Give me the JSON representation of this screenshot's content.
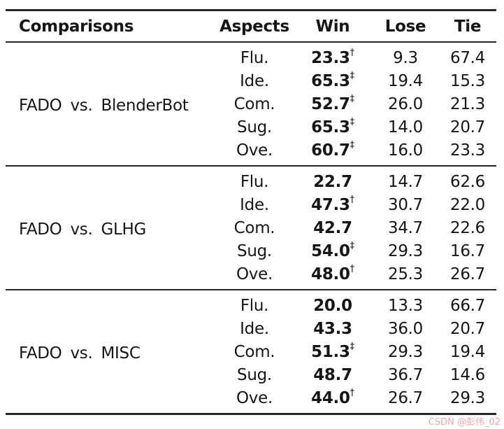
{
  "table": {
    "headers": {
      "comparisons": "Comparisons",
      "aspects": "Aspects",
      "win": "Win",
      "lose": "Lose",
      "tie": "Tie"
    },
    "groups": [
      {
        "comparison": "FADO vs. BlenderBot",
        "rows": [
          {
            "aspect": "Flu.",
            "win": "23.3",
            "mark": "†",
            "lose": "9.3",
            "tie": "67.4"
          },
          {
            "aspect": "Ide.",
            "win": "65.3",
            "mark": "‡",
            "lose": "19.4",
            "tie": "15.3"
          },
          {
            "aspect": "Com.",
            "win": "52.7",
            "mark": "‡",
            "lose": "26.0",
            "tie": "21.3"
          },
          {
            "aspect": "Sug.",
            "win": "65.3",
            "mark": "‡",
            "lose": "14.0",
            "tie": "20.7"
          },
          {
            "aspect": "Ove.",
            "win": "60.7",
            "mark": "‡",
            "lose": "16.0",
            "tie": "23.3"
          }
        ]
      },
      {
        "comparison": "FADO vs. GLHG",
        "rows": [
          {
            "aspect": "Flu.",
            "win": "22.7",
            "mark": "",
            "lose": "14.7",
            "tie": "62.6"
          },
          {
            "aspect": "Ide.",
            "win": "47.3",
            "mark": "†",
            "lose": "30.7",
            "tie": "22.0"
          },
          {
            "aspect": "Com.",
            "win": "42.7",
            "mark": "",
            "lose": "34.7",
            "tie": "22.6"
          },
          {
            "aspect": "Sug.",
            "win": "54.0",
            "mark": "‡",
            "lose": "29.3",
            "tie": "16.7"
          },
          {
            "aspect": "Ove.",
            "win": "48.0",
            "mark": "†",
            "lose": "25.3",
            "tie": "26.7"
          }
        ]
      },
      {
        "comparison": "FADO vs. MISC",
        "rows": [
          {
            "aspect": "Flu.",
            "win": "20.0",
            "mark": "",
            "lose": "13.3",
            "tie": "66.7"
          },
          {
            "aspect": "Ide.",
            "win": "43.3",
            "mark": "",
            "lose": "36.0",
            "tie": "20.7"
          },
          {
            "aspect": "Com.",
            "win": "51.3",
            "mark": "‡",
            "lose": "29.3",
            "tie": "19.4"
          },
          {
            "aspect": "Sug.",
            "win": "48.7",
            "mark": "",
            "lose": "36.7",
            "tie": "14.6"
          },
          {
            "aspect": "Ove.",
            "win": "44.0",
            "mark": "†",
            "lose": "26.7",
            "tie": "29.3"
          }
        ]
      }
    ]
  },
  "watermark": {
    "text": "CSDN @彭伟_02",
    "color": "#f0a6a6"
  }
}
